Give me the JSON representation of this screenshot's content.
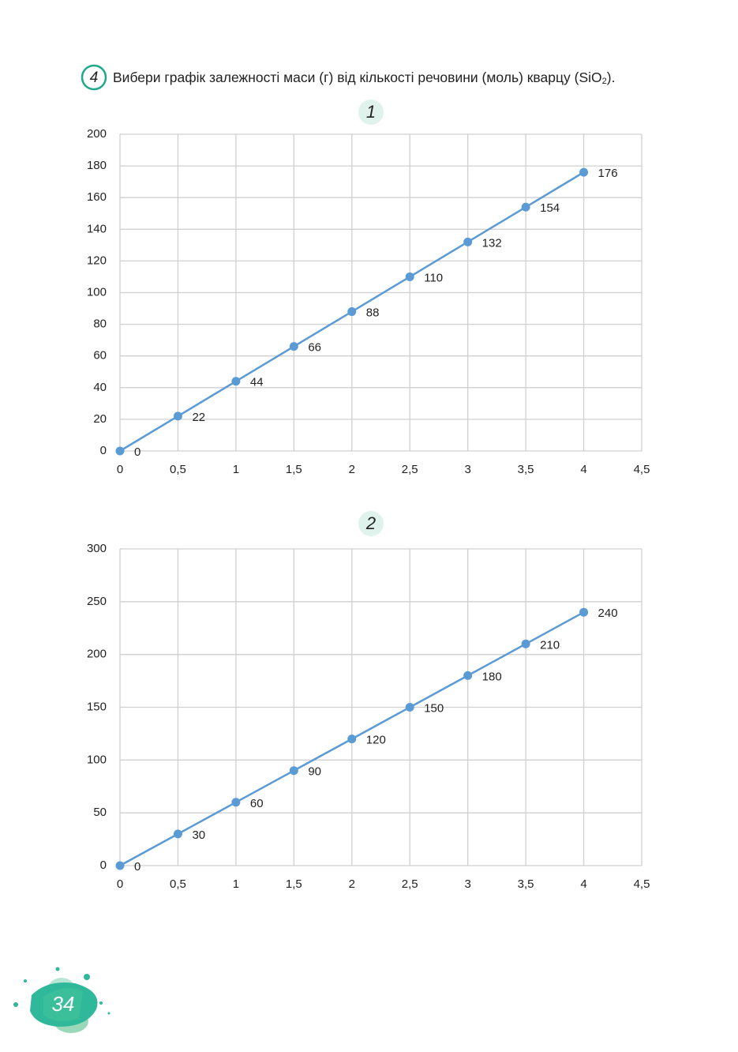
{
  "task": {
    "number": "4",
    "text": "Вибери графік залежності маси (г) від кількості речовини (моль) кварцу (SiO",
    "subscript": "2",
    "text_end": ")."
  },
  "chart_data": [
    {
      "type": "line",
      "label": "1",
      "x": [
        0,
        0.5,
        1,
        1.5,
        2,
        2.5,
        3,
        3.5,
        4
      ],
      "xlim": [
        0,
        4.5
      ],
      "xticks": [
        0,
        {
          "value": 0.5,
          "label": "0,5"
        },
        1,
        {
          "value": 1.5,
          "label": "1,5"
        },
        2,
        {
          "value": 2.5,
          "label": "2,5"
        },
        3,
        {
          "value": 3.5,
          "label": "3,5"
        },
        4,
        {
          "value": 4.5,
          "label": "4,5"
        }
      ],
      "ylim": [
        0,
        200
      ],
      "yticks": [
        0,
        20,
        40,
        60,
        80,
        100,
        120,
        140,
        160,
        180,
        200
      ],
      "grid": true,
      "series": [
        {
          "color": "#5b9bd5",
          "values": [
            0,
            22,
            44,
            66,
            88,
            110,
            132,
            154,
            176
          ]
        }
      ]
    },
    {
      "type": "line",
      "label": "2",
      "x": [
        0,
        0.5,
        1,
        1.5,
        2,
        2.5,
        3,
        3.5,
        4
      ],
      "xlim": [
        0,
        4.5
      ],
      "xticks": [
        0,
        {
          "value": 0.5,
          "label": "0,5"
        },
        1,
        {
          "value": 1.5,
          "label": "1,5"
        },
        2,
        {
          "value": 2.5,
          "label": "2,5"
        },
        3,
        {
          "value": 3.5,
          "label": "3,5"
        },
        4,
        {
          "value": 4.5,
          "label": "4,5"
        }
      ],
      "ylim": [
        0,
        300
      ],
      "yticks": [
        0,
        50,
        100,
        150,
        200,
        250,
        300
      ],
      "grid": true,
      "series": [
        {
          "color": "#5b9bd5",
          "values": [
            0,
            30,
            60,
            90,
            120,
            150,
            180,
            210,
            240
          ]
        }
      ]
    }
  ],
  "page_number": "34"
}
